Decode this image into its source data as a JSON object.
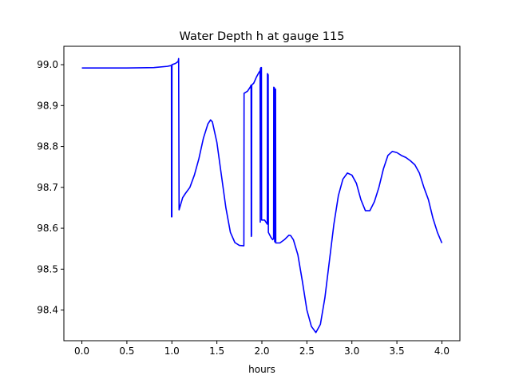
{
  "chart_data": {
    "type": "line",
    "title": "Water Depth h at gauge 115",
    "xlabel": "hours",
    "ylabel": "",
    "xlim": [
      -0.2,
      4.2
    ],
    "ylim": [
      98.325,
      99.045
    ],
    "x_ticks": [
      0.0,
      0.5,
      1.0,
      1.5,
      2.0,
      2.5,
      3.0,
      3.5,
      4.0
    ],
    "x_tick_labels": [
      "0.0",
      "0.5",
      "1.0",
      "1.5",
      "2.0",
      "2.5",
      "3.0",
      "3.5",
      "4.0"
    ],
    "y_ticks": [
      98.4,
      98.5,
      98.6,
      98.7,
      98.8,
      98.9,
      99.0
    ],
    "y_tick_labels": [
      "98.4",
      "98.5",
      "98.6",
      "98.7",
      "98.8",
      "98.9",
      "99.0"
    ],
    "grid": false,
    "legend": "none",
    "series": [
      {
        "color": "#0000ff",
        "points": [
          [
            0.0,
            98.992
          ],
          [
            0.5,
            98.992
          ],
          [
            0.8,
            98.993
          ],
          [
            0.95,
            98.996
          ],
          [
            0.995,
            98.998
          ],
          [
            0.996,
            98.628
          ],
          [
            1.0,
            98.628
          ],
          [
            1.001,
            99.0
          ],
          [
            1.04,
            99.003
          ],
          [
            1.07,
            99.008
          ],
          [
            1.075,
            99.015
          ],
          [
            1.08,
            98.645
          ],
          [
            1.1,
            98.66
          ],
          [
            1.12,
            98.675
          ],
          [
            1.15,
            98.685
          ],
          [
            1.2,
            98.7
          ],
          [
            1.25,
            98.73
          ],
          [
            1.3,
            98.77
          ],
          [
            1.35,
            98.82
          ],
          [
            1.4,
            98.855
          ],
          [
            1.43,
            98.865
          ],
          [
            1.45,
            98.86
          ],
          [
            1.5,
            98.81
          ],
          [
            1.55,
            98.73
          ],
          [
            1.6,
            98.65
          ],
          [
            1.65,
            98.59
          ],
          [
            1.7,
            98.565
          ],
          [
            1.75,
            98.558
          ],
          [
            1.8,
            98.557
          ],
          [
            1.802,
            98.93
          ],
          [
            1.84,
            98.935
          ],
          [
            1.87,
            98.945
          ],
          [
            1.88,
            98.95
          ],
          [
            1.882,
            98.58
          ],
          [
            1.885,
            98.583
          ],
          [
            1.887,
            98.95
          ],
          [
            1.91,
            98.955
          ],
          [
            1.94,
            98.97
          ],
          [
            1.97,
            98.982
          ],
          [
            1.98,
            98.985
          ],
          [
            1.982,
            98.615
          ],
          [
            1.983,
            98.99
          ],
          [
            1.99,
            98.993
          ],
          [
            1.995,
            98.993
          ],
          [
            1.997,
            98.62
          ],
          [
            2.03,
            98.62
          ],
          [
            2.06,
            98.61
          ],
          [
            2.062,
            98.978
          ],
          [
            2.07,
            98.975
          ],
          [
            2.072,
            98.59
          ],
          [
            2.1,
            98.578
          ],
          [
            2.12,
            98.572
          ],
          [
            2.13,
            98.575
          ],
          [
            2.132,
            98.945
          ],
          [
            2.14,
            98.943
          ],
          [
            2.142,
            98.567
          ],
          [
            2.145,
            98.94
          ],
          [
            2.152,
            98.94
          ],
          [
            2.154,
            98.564
          ],
          [
            2.2,
            98.564
          ],
          [
            2.25,
            98.572
          ],
          [
            2.3,
            98.583
          ],
          [
            2.32,
            98.582
          ],
          [
            2.35,
            98.572
          ],
          [
            2.4,
            98.535
          ],
          [
            2.45,
            98.47
          ],
          [
            2.5,
            98.4
          ],
          [
            2.55,
            98.36
          ],
          [
            2.6,
            98.345
          ],
          [
            2.65,
            98.365
          ],
          [
            2.7,
            98.43
          ],
          [
            2.75,
            98.52
          ],
          [
            2.8,
            98.61
          ],
          [
            2.85,
            98.68
          ],
          [
            2.9,
            98.72
          ],
          [
            2.95,
            98.735
          ],
          [
            3.0,
            98.73
          ],
          [
            3.05,
            98.71
          ],
          [
            3.1,
            98.67
          ],
          [
            3.15,
            98.643
          ],
          [
            3.2,
            98.643
          ],
          [
            3.25,
            98.665
          ],
          [
            3.3,
            98.7
          ],
          [
            3.35,
            98.745
          ],
          [
            3.4,
            98.778
          ],
          [
            3.45,
            98.788
          ],
          [
            3.5,
            98.785
          ],
          [
            3.55,
            98.778
          ],
          [
            3.6,
            98.773
          ],
          [
            3.65,
            98.765
          ],
          [
            3.7,
            98.755
          ],
          [
            3.75,
            98.735
          ],
          [
            3.8,
            98.7
          ],
          [
            3.85,
            98.67
          ],
          [
            3.9,
            98.625
          ],
          [
            3.95,
            98.59
          ],
          [
            4.0,
            98.564
          ]
        ]
      }
    ]
  }
}
